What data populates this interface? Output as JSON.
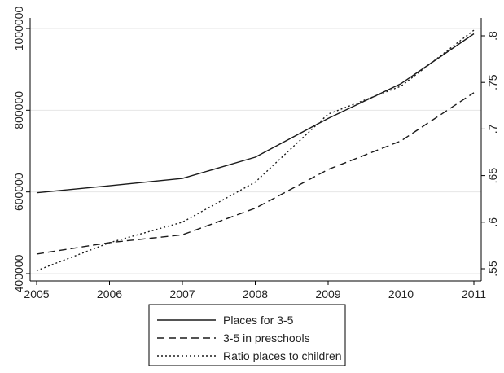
{
  "chart_data": {
    "type": "line",
    "x": [
      2005,
      2006,
      2007,
      2008,
      2009,
      2010,
      2011
    ],
    "series": [
      {
        "name": "Places for 3-5",
        "axis": "left",
        "dash": "solid",
        "values": [
          598000,
          615000,
          633000,
          685000,
          780000,
          865000,
          987000
        ]
      },
      {
        "name": "3-5 in preschools",
        "axis": "left",
        "dash": "dashed",
        "values": [
          448000,
          476000,
          495000,
          560000,
          655000,
          725000,
          843000
        ]
      },
      {
        "name": "Ratio places to children",
        "axis": "right",
        "dash": "dotted",
        "values": [
          0.548,
          0.578,
          0.6,
          0.643,
          0.716,
          0.746,
          0.806
        ]
      }
    ],
    "x_ticks": [
      "2005",
      "2006",
      "2007",
      "2008",
      "2009",
      "2010",
      "2011"
    ],
    "y_left_ticks": [
      "400000",
      "600000",
      "800000",
      "1000000"
    ],
    "y_left_tick_values": [
      400000,
      600000,
      800000,
      1000000
    ],
    "y_right_ticks": [
      ".55",
      ".6",
      ".65",
      ".7",
      ".75",
      ".8"
    ],
    "y_right_tick_values": [
      0.55,
      0.6,
      0.65,
      0.7,
      0.75,
      0.8
    ],
    "xlim": [
      2005,
      2011
    ],
    "ylim_left": [
      400000,
      1000000
    ],
    "ylim_right": [
      0.55,
      0.8
    ],
    "grid": "horizontal",
    "legend_position": "bottom",
    "colors": {
      "line": "#1a1a1a",
      "grid": "#e6e6e6",
      "axis": "#000000",
      "text": "#222222"
    }
  }
}
